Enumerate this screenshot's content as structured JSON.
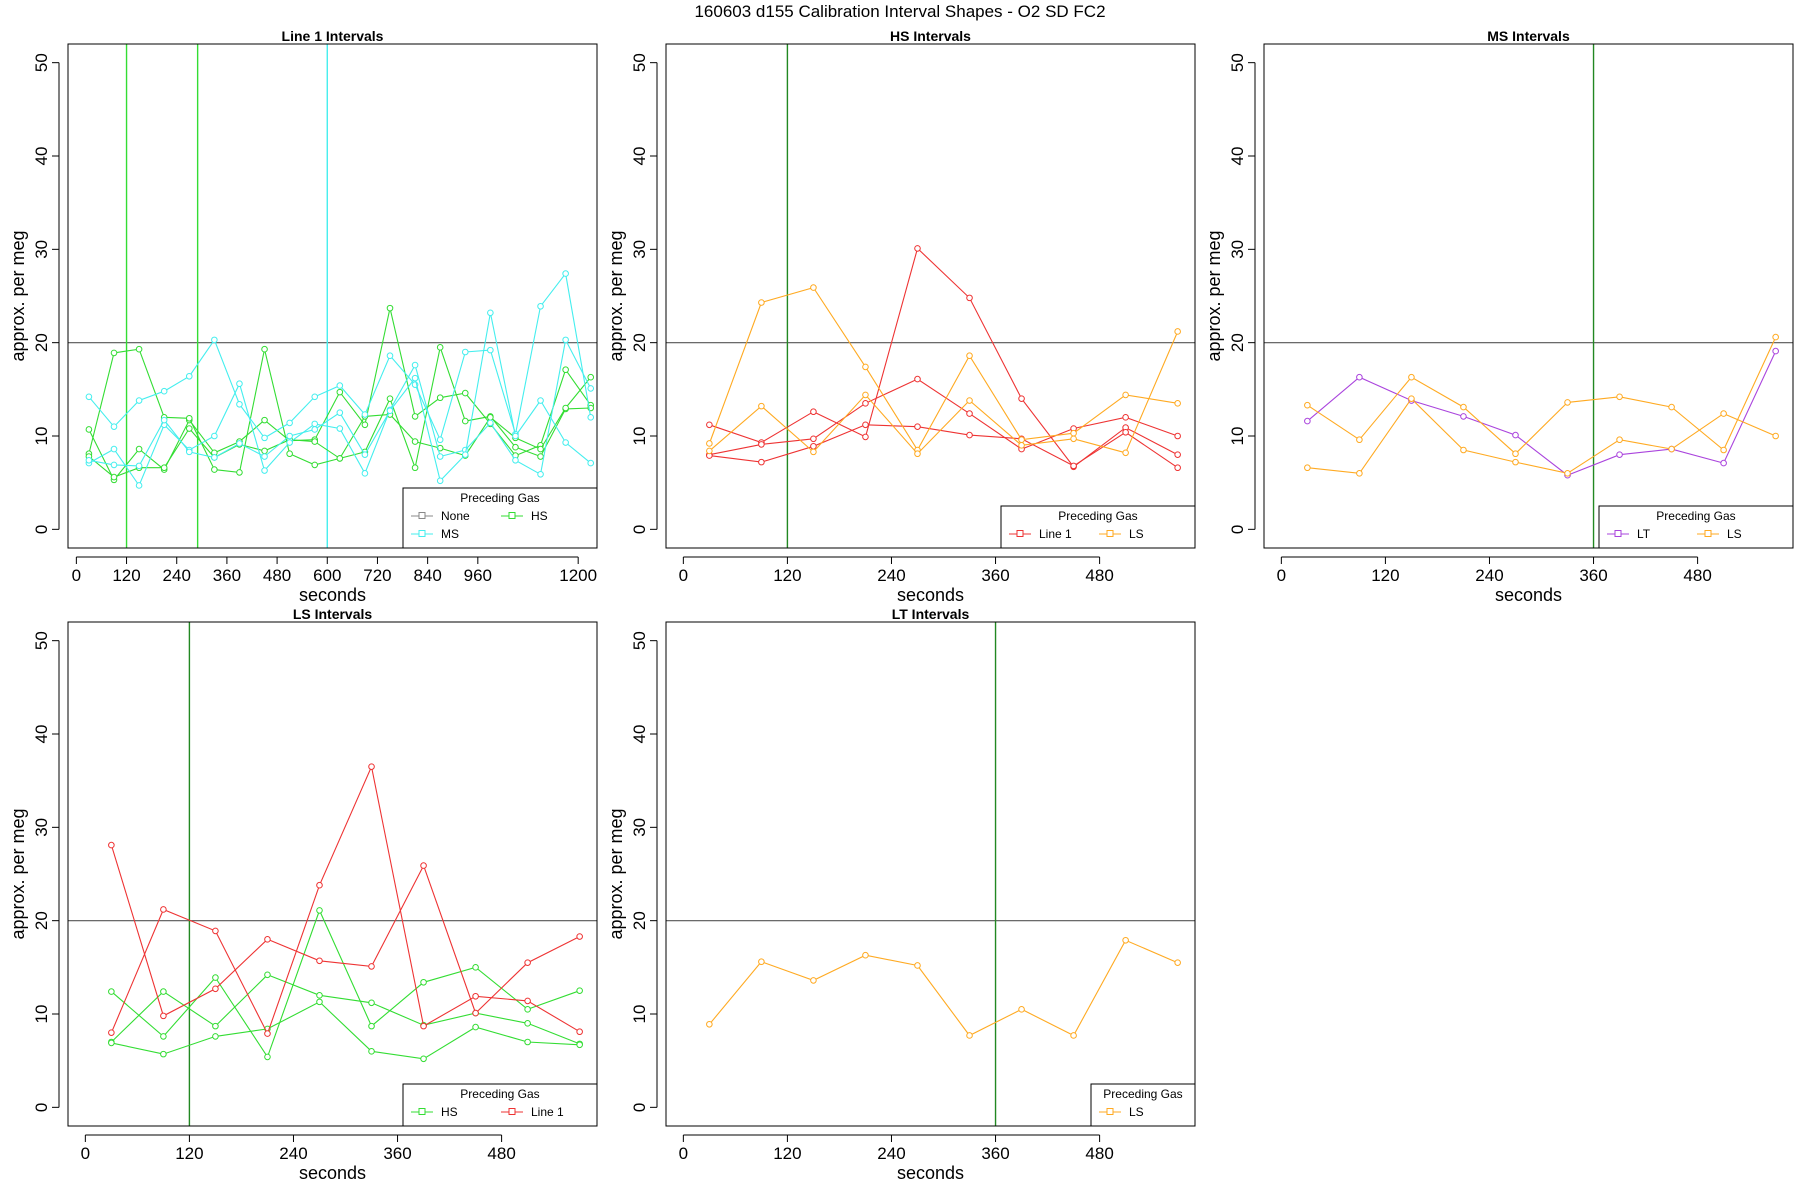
{
  "title": "160603   d155   Calibration Interval Shapes - O2 SD FC2",
  "colors": {
    "None": "#888888",
    "HS": "#33dd33",
    "MS": "#44eeee",
    "Line 1": "#ee3333",
    "LS": "#ffaa22",
    "LT": "#aa44dd",
    "ref_line": "#555555",
    "vline_green": "#228822"
  },
  "chart_data": [
    {
      "type": "line",
      "title": "Line 1 Intervals",
      "xlabel": "seconds",
      "ylabel": "approx. per meg",
      "xlim": [
        -20,
        1245
      ],
      "ylim": [
        -2,
        52
      ],
      "xticks": [
        0,
        120,
        240,
        360,
        480,
        600,
        720,
        840,
        960,
        1200
      ],
      "yticks": [
        0,
        10,
        20,
        30,
        40,
        50
      ],
      "hline": 20,
      "vlines": [
        {
          "x": 120,
          "color": "#33dd33"
        },
        {
          "x": 290,
          "color": "#33dd33"
        },
        {
          "x": 600,
          "color": "#44eeee"
        }
      ],
      "legend": {
        "title": "Preceding Gas",
        "entries": [
          "None",
          "HS",
          "MS"
        ]
      },
      "series": [
        {
          "name": "HS",
          "x": [
            30,
            90,
            150,
            210,
            270,
            330,
            390,
            450,
            510,
            570,
            630,
            690,
            750,
            810,
            870,
            930,
            990,
            1050,
            1110,
            1170,
            1230
          ],
          "values": [
            10.7,
            5.3,
            8.6,
            6.4,
            11.7,
            8.2,
            9.4,
            11.7,
            9.5,
            9.6,
            14.7,
            11.2,
            23.7,
            12.1,
            14.1,
            14.6,
            11.3,
            7.9,
            9.0,
            17.1,
            13.3
          ]
        },
        {
          "name": "HS",
          "x": [
            30,
            90,
            150,
            210,
            270,
            330,
            390,
            450,
            510,
            570,
            630,
            690,
            750,
            810,
            870,
            930,
            990,
            1050,
            1110,
            1170,
            1230
          ],
          "values": [
            8.1,
            18.9,
            19.3,
            12.0,
            11.9,
            6.4,
            6.1,
            19.3,
            8.1,
            6.9,
            7.6,
            8.3,
            14.0,
            6.6,
            19.5,
            11.6,
            12.1,
            8.8,
            7.8,
            12.9,
            13.0
          ]
        },
        {
          "name": "HS",
          "x": [
            30,
            90,
            150,
            210,
            270,
            330,
            390,
            450,
            510,
            570,
            630,
            690,
            750,
            810,
            870,
            930,
            990,
            1050,
            1110,
            1170,
            1230
          ],
          "values": [
            7.8,
            5.6,
            6.6,
            6.6,
            10.8,
            7.7,
            9.1,
            8.4,
            9.6,
            9.4,
            7.6,
            12.1,
            12.3,
            9.4,
            8.7,
            7.9,
            12.0,
            9.8,
            8.6,
            13.0,
            16.3
          ]
        },
        {
          "name": "MS",
          "x": [
            30,
            90,
            150,
            210,
            270,
            330,
            390,
            450,
            510,
            570,
            630,
            690,
            750,
            810,
            870,
            930,
            990,
            1050,
            1110,
            1170,
            1230
          ],
          "values": [
            14.2,
            11.0,
            13.8,
            14.8,
            16.4,
            20.3,
            13.4,
            9.8,
            11.4,
            14.2,
            15.4,
            12.3,
            18.6,
            15.5,
            9.6,
            19.0,
            19.2,
            10.2,
            23.9,
            27.4,
            12.0
          ]
        },
        {
          "name": "MS",
          "x": [
            30,
            90,
            150,
            210,
            270,
            330,
            390,
            450,
            510,
            570,
            630,
            690,
            750,
            810,
            870,
            930,
            990,
            1050,
            1110,
            1170,
            1230
          ],
          "values": [
            7.1,
            8.6,
            4.7,
            11.2,
            8.5,
            10.0,
            15.6,
            6.3,
            9.3,
            11.3,
            10.8,
            6.0,
            12.8,
            17.6,
            7.8,
            8.5,
            11.4,
            7.4,
            5.9,
            20.3,
            15.1
          ]
        },
        {
          "name": "MS",
          "x": [
            30,
            90,
            150,
            210,
            270,
            330,
            390,
            450,
            510,
            570,
            630,
            690,
            750,
            810,
            870,
            930,
            990,
            1050,
            1110,
            1170,
            1230
          ],
          "values": [
            7.4,
            6.9,
            6.8,
            11.7,
            8.3,
            7.7,
            9.2,
            7.8,
            10.0,
            10.7,
            12.5,
            8.0,
            12.7,
            16.2,
            5.2,
            8.0,
            23.2,
            10.0,
            13.8,
            9.3,
            7.1
          ]
        }
      ]
    },
    {
      "type": "line",
      "title": "HS Intervals",
      "xlabel": "seconds",
      "ylabel": "approx. per meg",
      "xlim": [
        -20,
        590
      ],
      "ylim": [
        -2,
        52
      ],
      "xticks": [
        0,
        120,
        240,
        360,
        480
      ],
      "yticks": [
        0,
        10,
        20,
        30,
        40,
        50
      ],
      "hline": 20,
      "vlines": [
        {
          "x": 120,
          "color": "#228822"
        }
      ],
      "legend": {
        "title": "Preceding Gas",
        "entries": [
          "Line 1",
          "LS"
        ]
      },
      "series": [
        {
          "name": "Line 1",
          "x": [
            30,
            90,
            150,
            210,
            270,
            330,
            390,
            450,
            510,
            570
          ],
          "values": [
            11.2,
            9.3,
            12.6,
            9.9,
            30.1,
            24.8,
            14.0,
            6.7,
            10.9,
            8.0
          ]
        },
        {
          "name": "Line 1",
          "x": [
            30,
            90,
            150,
            210,
            270,
            330,
            390,
            450,
            510,
            570
          ],
          "values": [
            8.0,
            9.1,
            9.7,
            13.5,
            16.1,
            12.4,
            8.6,
            10.8,
            12.0,
            10.0
          ]
        },
        {
          "name": "Line 1",
          "x": [
            30,
            90,
            150,
            210,
            270,
            330,
            390,
            450,
            510,
            570
          ],
          "values": [
            7.9,
            7.2,
            8.9,
            11.2,
            11.0,
            10.1,
            9.7,
            6.8,
            10.4,
            6.6
          ]
        },
        {
          "name": "LS",
          "x": [
            30,
            90,
            150,
            210,
            270,
            330,
            390,
            450,
            510,
            570
          ],
          "values": [
            9.2,
            24.3,
            25.9,
            17.4,
            8.5,
            18.6,
            9.6,
            10.3,
            14.4,
            13.5
          ]
        },
        {
          "name": "LS",
          "x": [
            30,
            90,
            150,
            210,
            270,
            330,
            390,
            450,
            510,
            570
          ],
          "values": [
            8.4,
            13.2,
            8.3,
            14.4,
            8.1,
            13.8,
            9.0,
            9.7,
            8.2,
            21.2
          ]
        }
      ]
    },
    {
      "type": "line",
      "title": "MS Intervals",
      "xlabel": "seconds",
      "ylabel": "approx. per meg",
      "xlim": [
        -20,
        590
      ],
      "ylim": [
        -2,
        52
      ],
      "xticks": [
        0,
        120,
        240,
        360,
        480
      ],
      "yticks": [
        0,
        10,
        20,
        30,
        40,
        50
      ],
      "hline": 20,
      "vlines": [
        {
          "x": 360,
          "color": "#228822"
        }
      ],
      "legend": {
        "title": "Preceding Gas",
        "entries": [
          "LT",
          "LS"
        ]
      },
      "series": [
        {
          "name": "LT",
          "x": [
            30,
            90,
            150,
            210,
            270,
            330,
            390,
            450,
            510,
            570
          ],
          "values": [
            11.6,
            16.3,
            13.8,
            12.1,
            10.1,
            5.8,
            8.0,
            8.6,
            7.1,
            19.1
          ]
        },
        {
          "name": "LS",
          "x": [
            30,
            90,
            150,
            210,
            270,
            330,
            390,
            450,
            510,
            570
          ],
          "values": [
            13.3,
            9.6,
            16.3,
            13.1,
            8.1,
            13.6,
            14.2,
            13.1,
            8.5,
            20.6
          ]
        },
        {
          "name": "LS",
          "x": [
            30,
            90,
            150,
            210,
            270,
            330,
            390,
            450,
            510,
            570
          ],
          "values": [
            6.6,
            6.0,
            14.0,
            8.5,
            7.2,
            6.0,
            9.6,
            8.6,
            12.4,
            10.0
          ]
        }
      ]
    },
    {
      "type": "line",
      "title": "LS Intervals",
      "xlabel": "seconds",
      "ylabel": "approx. per meg",
      "xlim": [
        -20,
        590
      ],
      "ylim": [
        -2,
        52
      ],
      "xticks": [
        0,
        120,
        240,
        360,
        480
      ],
      "yticks": [
        0,
        10,
        20,
        30,
        40,
        50
      ],
      "hline": 20,
      "vlines": [
        {
          "x": 120,
          "color": "#228822"
        }
      ],
      "legend": {
        "title": "Preceding Gas",
        "entries": [
          "HS",
          "Line 1"
        ]
      },
      "series": [
        {
          "name": "HS",
          "x": [
            30,
            90,
            150,
            210,
            270,
            330,
            390,
            450,
            510,
            570
          ],
          "values": [
            12.4,
            7.6,
            13.9,
            5.4,
            21.1,
            8.7,
            13.4,
            15.0,
            10.5,
            12.5
          ]
        },
        {
          "name": "HS",
          "x": [
            30,
            90,
            150,
            210,
            270,
            330,
            390,
            450,
            510,
            570
          ],
          "values": [
            7.0,
            12.4,
            8.7,
            14.2,
            12.0,
            11.2,
            8.8,
            10.1,
            9.0,
            6.8
          ]
        },
        {
          "name": "HS",
          "x": [
            30,
            90,
            150,
            210,
            270,
            330,
            390,
            450,
            510,
            570
          ],
          "values": [
            6.9,
            5.7,
            7.6,
            8.4,
            11.3,
            6.0,
            5.2,
            8.6,
            7.0,
            6.7
          ]
        },
        {
          "name": "Line 1",
          "x": [
            30,
            90,
            150,
            210,
            270,
            330,
            390,
            450,
            510,
            570
          ],
          "values": [
            28.1,
            9.8,
            12.7,
            18.0,
            15.7,
            15.1,
            25.9,
            10.1,
            15.5,
            18.3
          ]
        },
        {
          "name": "Line 1",
          "x": [
            30,
            90,
            150,
            210,
            270,
            330,
            390,
            450,
            510,
            570
          ],
          "values": [
            8.0,
            21.2,
            18.9,
            7.9,
            23.8,
            36.5,
            8.7,
            11.9,
            11.4,
            8.1
          ]
        }
      ]
    },
    {
      "type": "line",
      "title": "LT Intervals",
      "xlabel": "seconds",
      "ylabel": "approx. per meg",
      "xlim": [
        -20,
        590
      ],
      "ylim": [
        -2,
        52
      ],
      "xticks": [
        0,
        120,
        240,
        360,
        480
      ],
      "yticks": [
        0,
        10,
        20,
        30,
        40,
        50
      ],
      "hline": 20,
      "vlines": [
        {
          "x": 360,
          "color": "#228822"
        }
      ],
      "legend": {
        "title": "Preceding Gas",
        "entries": [
          "LS"
        ]
      },
      "series": [
        {
          "name": "LS",
          "x": [
            30,
            90,
            150,
            210,
            270,
            330,
            390,
            450,
            510,
            570
          ],
          "values": [
            8.9,
            15.6,
            13.6,
            16.3,
            15.2,
            7.7,
            10.5,
            7.7,
            17.9,
            15.5
          ]
        }
      ]
    }
  ]
}
